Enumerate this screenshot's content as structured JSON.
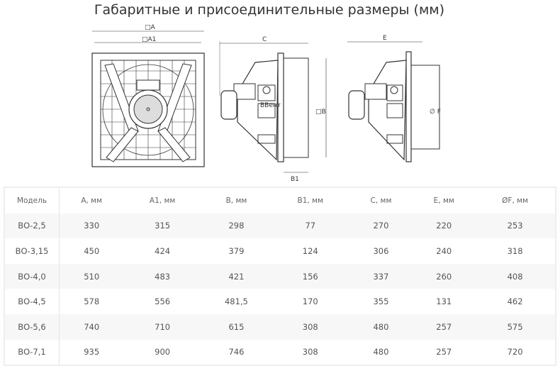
{
  "title": "Габаритные и присоединительные размеры (мм)",
  "drawing": {
    "labels": {
      "A": "□A",
      "A1": "□A1",
      "C": "C",
      "B": "□B",
      "B1": "B1",
      "E": "E",
      "F": "∅ F"
    },
    "brand": "ВВент"
  },
  "table": {
    "headers": [
      "Модель",
      "A, мм",
      "A1, мм",
      "B, мм",
      "B1, мм",
      "C, мм",
      "E, мм",
      "ØF, мм"
    ],
    "rows": [
      [
        "ВО-2,5",
        "330",
        "315",
        "298",
        "77",
        "270",
        "220",
        "253"
      ],
      [
        "ВО-3,15",
        "450",
        "424",
        "379",
        "124",
        "306",
        "240",
        "318"
      ],
      [
        "ВО-4,0",
        "510",
        "483",
        "421",
        "156",
        "337",
        "260",
        "408"
      ],
      [
        "ВО-4,5",
        "578",
        "556",
        "481,5",
        "170",
        "355",
        "131",
        "462"
      ],
      [
        "ВО-5,6",
        "740",
        "710",
        "615",
        "308",
        "480",
        "257",
        "575"
      ],
      [
        "ВО-7,1",
        "935",
        "900",
        "746",
        "308",
        "480",
        "257",
        "720"
      ]
    ]
  }
}
